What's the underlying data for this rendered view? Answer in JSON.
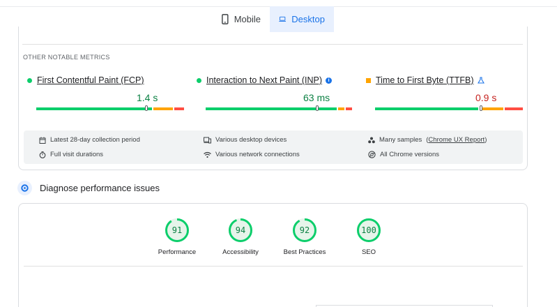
{
  "tabs": [
    {
      "label": "Mobile",
      "icon": "smartphone-icon",
      "active": false
    },
    {
      "label": "Desktop",
      "icon": "laptop-icon",
      "active": true
    }
  ],
  "field_data": {
    "section_label": "OTHER NOTABLE METRICS",
    "metrics": [
      {
        "name": "First Contentful Paint (FCP)",
        "value": "1.4 s",
        "status": "good",
        "value_color": "#0b8043",
        "marker_fraction": 0.69
      },
      {
        "name": "Interaction to Next Paint (INP)",
        "value": "63 ms",
        "status": "good",
        "value_color": "#0b8043",
        "marker_fraction": 0.75
      },
      {
        "name": "Time to First Byte (TTFB)",
        "value": "0.9 s",
        "status": "needs-improvement",
        "value_color": "#c5221f",
        "marker_fraction": 0.71
      }
    ],
    "info": [
      {
        "icon": "calendar-icon",
        "text": "Latest 28-day collection period"
      },
      {
        "icon": "devices-icon",
        "text": "Various desktop devices"
      },
      {
        "icon": "people-icon",
        "text": "Many samples",
        "link": "Chrome UX Report"
      },
      {
        "icon": "timer-icon",
        "text": "Full visit durations"
      },
      {
        "icon": "wifi-icon",
        "text": "Various network connections"
      },
      {
        "icon": "chrome-icon",
        "text": "All Chrome versions"
      }
    ]
  },
  "diagnose": {
    "title": "Diagnose performance issues"
  },
  "scores": [
    {
      "label": "Performance",
      "score": "91",
      "value": 91
    },
    {
      "label": "Accessibility",
      "score": "94",
      "value": 94
    },
    {
      "label": "Best Practices",
      "score": "92",
      "value": 92
    },
    {
      "label": "SEO",
      "score": "100",
      "value": 100
    }
  ],
  "colors": {
    "good": "#0cce6b",
    "average": "#ffa400",
    "poor": "#ff4e42",
    "accent": "#1a73e8"
  }
}
